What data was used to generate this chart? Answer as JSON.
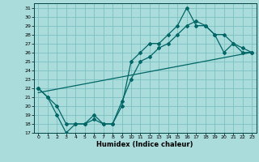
{
  "title": "",
  "xlabel": "Humidex (Indice chaleur)",
  "bg_color": "#aadcdc",
  "grid_color": "#7cc0c0",
  "line_color": "#006666",
  "xlim": [
    -0.5,
    23.5
  ],
  "ylim": [
    17,
    31.5
  ],
  "xticks": [
    0,
    1,
    2,
    3,
    4,
    5,
    6,
    7,
    8,
    9,
    10,
    11,
    12,
    13,
    14,
    15,
    16,
    17,
    18,
    19,
    20,
    21,
    22,
    23
  ],
  "yticks": [
    17,
    18,
    19,
    20,
    21,
    22,
    23,
    24,
    25,
    26,
    27,
    28,
    29,
    30,
    31
  ],
  "line1_x": [
    0,
    1,
    2,
    3,
    4,
    5,
    6,
    7,
    8,
    9,
    10,
    11,
    12,
    13,
    14,
    15,
    16,
    17,
    18,
    19,
    20,
    21,
    22,
    23
  ],
  "line1_y": [
    22,
    21,
    19,
    17,
    18,
    18,
    19,
    18,
    18,
    20,
    25,
    26,
    27,
    27,
    28,
    29,
    31,
    29,
    29,
    28,
    26,
    27,
    26,
    26
  ],
  "line2_x": [
    0,
    1,
    2,
    3,
    4,
    5,
    6,
    7,
    8,
    9,
    10,
    11,
    12,
    13,
    14,
    15,
    16,
    17,
    18,
    19,
    20,
    21,
    22,
    23
  ],
  "line2_y": [
    22,
    21,
    20,
    18,
    18,
    18,
    18.5,
    18,
    18,
    20.5,
    23,
    25,
    25.5,
    26.5,
    27,
    28,
    29,
    29.5,
    29,
    28,
    28,
    27,
    26.5,
    26
  ],
  "line3_x": [
    0,
    23
  ],
  "line3_y": [
    21.5,
    26
  ]
}
